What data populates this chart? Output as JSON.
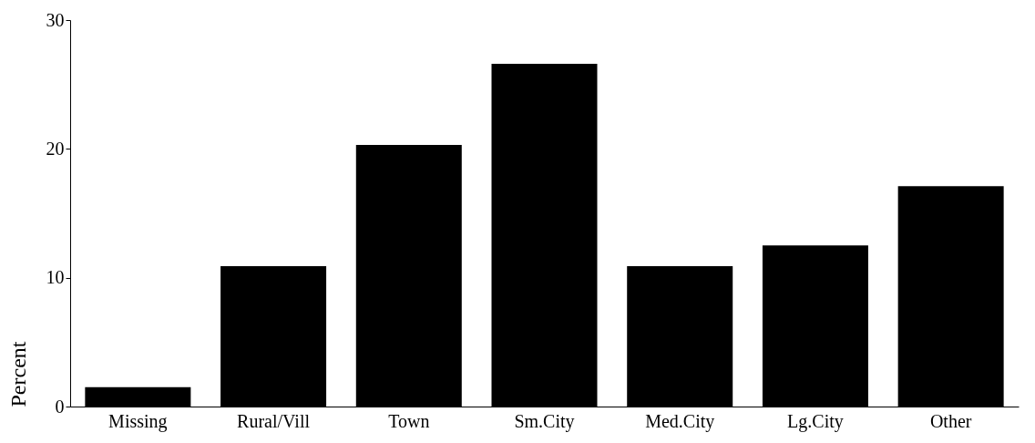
{
  "chart_data": {
    "type": "bar",
    "ylabel": "Percent",
    "categories": [
      "Missing",
      "Rural/Vill",
      "Town",
      "Sm.City",
      "Med.City",
      "Lg.City",
      "Other"
    ],
    "values": [
      1.5,
      10.9,
      20.3,
      26.6,
      10.9,
      12.5,
      17.1
    ],
    "color": "#000000",
    "ylim": [
      0,
      30
    ],
    "yticks": [
      0,
      10,
      20,
      30
    ],
    "grid": false
  }
}
